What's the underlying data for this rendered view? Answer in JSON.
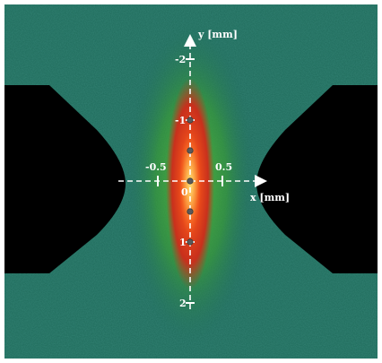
{
  "image": {
    "background_color": "#ffffff",
    "field_color": "#1e6a5a",
    "electrode_color": "#000000",
    "beam_core_color": "#e8231a",
    "beam_halo_color": "#3fae2e",
    "beam_hot_color": "#ffcf5a",
    "marker_color": "#5a5a5a",
    "axis_color": "#ffffff"
  },
  "axes": {
    "x_label": "x [mm]",
    "y_label": "y [mm]",
    "x_ticks": [
      {
        "value": -0.5,
        "label": "-0.5"
      },
      {
        "value": 0.5,
        "label": "0.5"
      }
    ],
    "y_ticks": [
      {
        "value": -2,
        "label": "-2"
      },
      {
        "value": -1,
        "label": "-1"
      },
      {
        "value": 1,
        "label": "1"
      },
      {
        "value": 2,
        "label": "2"
      }
    ],
    "origin_label": "0"
  },
  "icons": {
    "x_arrow": "arrow-right-icon",
    "y_arrow": "arrow-up-icon"
  }
}
